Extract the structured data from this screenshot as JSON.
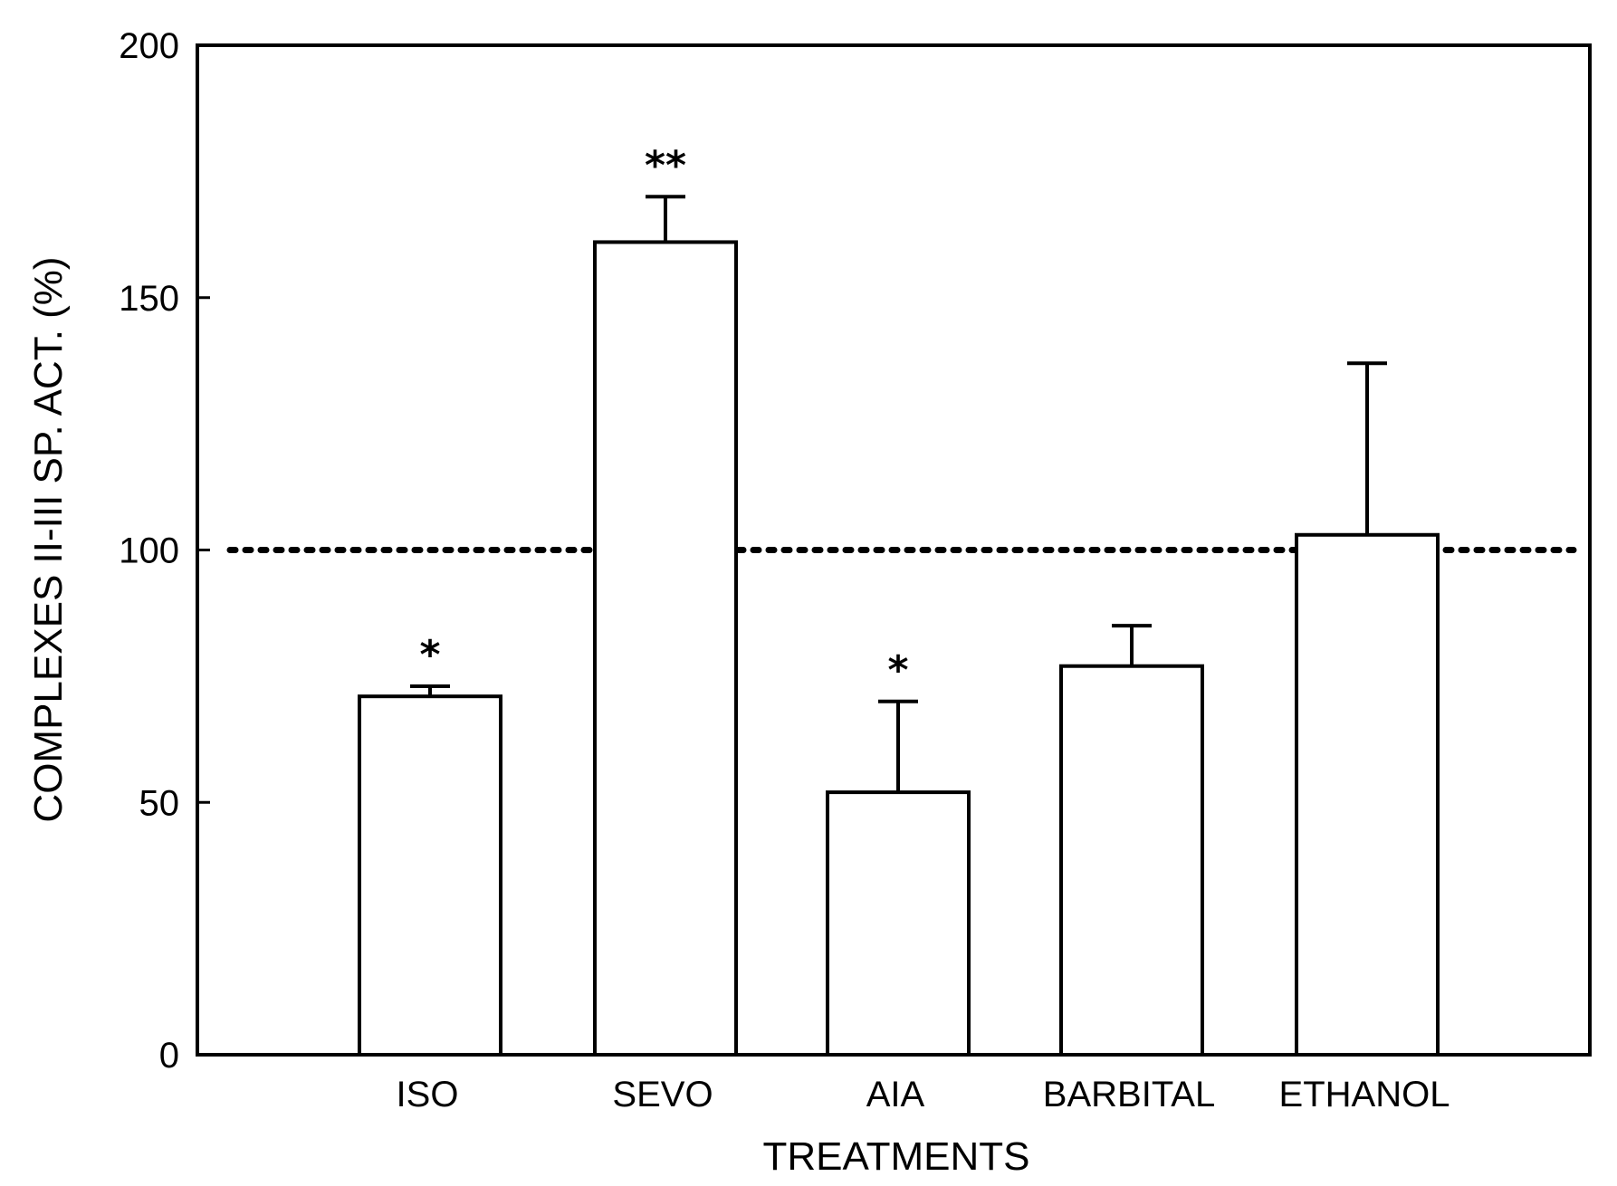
{
  "chart_data": {
    "type": "bar",
    "title": "",
    "xlabel": "TREATMENTS",
    "ylabel": "COMPLEXES II-III SP. ACT. (%)",
    "categories": [
      "ISO",
      "SEVO",
      "AIA",
      "BARBITAL",
      "ETHANOL"
    ],
    "values": [
      71,
      161,
      52,
      77,
      103
    ],
    "errors": [
      2,
      9,
      18,
      8,
      34
    ],
    "significance": [
      "*",
      "**",
      "*",
      "",
      ""
    ],
    "yticks": [
      0,
      50,
      100,
      150,
      200
    ],
    "ylim": [
      0,
      200
    ],
    "reference_line": 100,
    "grid": false,
    "colors": {
      "bar_fill": "#ffffff",
      "stroke": "#000000",
      "background": "#ffffff"
    }
  }
}
